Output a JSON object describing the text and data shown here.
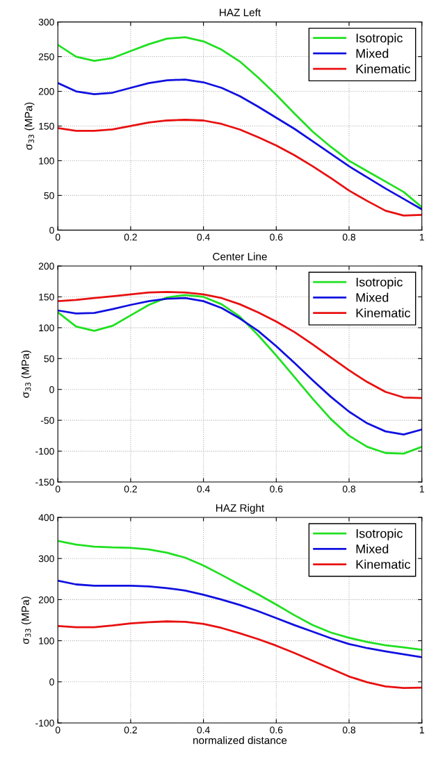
{
  "chart_data": [
    {
      "type": "line",
      "title": "HAZ Left",
      "ylabel": "σ$_{33}$ (MPa)",
      "xlim": [
        0,
        1
      ],
      "xticks": [
        0,
        0.2,
        0.4,
        0.6,
        0.8,
        1
      ],
      "ylim": [
        0,
        300
      ],
      "yticks": [
        0,
        50,
        100,
        150,
        200,
        250,
        300
      ],
      "grid": true,
      "legend": "top right",
      "x": [
        0,
        0.05,
        0.1,
        0.15,
        0.2,
        0.25,
        0.3,
        0.35,
        0.4,
        0.45,
        0.5,
        0.55,
        0.6,
        0.65,
        0.7,
        0.75,
        0.8,
        0.85,
        0.9,
        0.95,
        1
      ],
      "series": [
        {
          "name": "Isotropic",
          "color": "#20e020",
          "values": [
            267,
            250,
            244,
            248,
            258,
            268,
            276,
            278,
            272,
            260,
            243,
            220,
            195,
            168,
            142,
            120,
            100,
            85,
            70,
            55,
            33
          ]
        },
        {
          "name": "Mixed",
          "color": "#1010e0",
          "values": [
            212,
            200,
            196,
            198,
            205,
            212,
            216,
            217,
            213,
            205,
            193,
            178,
            162,
            146,
            128,
            110,
            92,
            76,
            60,
            45,
            30
          ]
        },
        {
          "name": "Kinematic",
          "color": "#e81010",
          "values": [
            147,
            143,
            143,
            145,
            150,
            155,
            158,
            159,
            158,
            153,
            145,
            134,
            122,
            108,
            92,
            75,
            57,
            42,
            28,
            21,
            22
          ]
        }
      ]
    },
    {
      "type": "line",
      "title": "Center Line",
      "ylabel": "σ$_{33}$ (MPa)",
      "xlim": [
        0,
        1
      ],
      "xticks": [
        0,
        0.2,
        0.4,
        0.6,
        0.8,
        1
      ],
      "ylim": [
        -150,
        200
      ],
      "yticks": [
        -150,
        -100,
        -50,
        0,
        50,
        100,
        150,
        200
      ],
      "grid": true,
      "legend": "top right",
      "x": [
        0,
        0.05,
        0.1,
        0.15,
        0.2,
        0.25,
        0.3,
        0.35,
        0.4,
        0.45,
        0.5,
        0.55,
        0.6,
        0.65,
        0.7,
        0.75,
        0.8,
        0.85,
        0.9,
        0.95,
        1
      ],
      "series": [
        {
          "name": "Isotropic",
          "color": "#20e020",
          "values": [
            125,
            102,
            95,
            103,
            120,
            137,
            149,
            153,
            150,
            138,
            118,
            88,
            55,
            20,
            -15,
            -48,
            -75,
            -93,
            -103,
            -104,
            -93
          ]
        },
        {
          "name": "Mixed",
          "color": "#1010e0",
          "values": [
            128,
            123,
            124,
            130,
            137,
            143,
            147,
            148,
            143,
            132,
            115,
            95,
            70,
            43,
            15,
            -12,
            -36,
            -55,
            -68,
            -73,
            -65
          ]
        },
        {
          "name": "Kinematic",
          "color": "#e81010",
          "values": [
            143,
            145,
            148,
            151,
            154,
            157,
            158,
            157,
            154,
            148,
            138,
            125,
            110,
            93,
            73,
            52,
            31,
            12,
            -4,
            -13,
            -14
          ]
        }
      ]
    },
    {
      "type": "line",
      "title": "HAZ Right",
      "xlabel": "normalized distance",
      "ylabel": "σ$_{33}$ (MPa)",
      "xlim": [
        0,
        1
      ],
      "xticks": [
        0,
        0.2,
        0.4,
        0.6,
        0.8,
        1
      ],
      "ylim": [
        -100,
        400
      ],
      "yticks": [
        -100,
        0,
        100,
        200,
        300,
        400
      ],
      "grid": true,
      "legend": "top right",
      "x": [
        0,
        0.05,
        0.1,
        0.15,
        0.2,
        0.25,
        0.3,
        0.35,
        0.4,
        0.45,
        0.5,
        0.55,
        0.6,
        0.65,
        0.7,
        0.75,
        0.8,
        0.85,
        0.9,
        0.95,
        1
      ],
      "series": [
        {
          "name": "Isotropic",
          "color": "#20e020",
          "values": [
            343,
            334,
            329,
            327,
            326,
            322,
            314,
            302,
            283,
            260,
            236,
            213,
            188,
            162,
            138,
            120,
            107,
            97,
            89,
            84,
            78
          ]
        },
        {
          "name": "Mixed",
          "color": "#1010e0",
          "values": [
            246,
            237,
            234,
            234,
            234,
            232,
            228,
            222,
            212,
            200,
            187,
            172,
            155,
            138,
            122,
            106,
            92,
            82,
            74,
            67,
            60
          ]
        },
        {
          "name": "Kinematic",
          "color": "#e81010",
          "values": [
            136,
            133,
            133,
            137,
            142,
            145,
            147,
            146,
            141,
            131,
            118,
            104,
            88,
            70,
            51,
            32,
            13,
            -1,
            -11,
            -15,
            -14
          ]
        }
      ]
    }
  ]
}
